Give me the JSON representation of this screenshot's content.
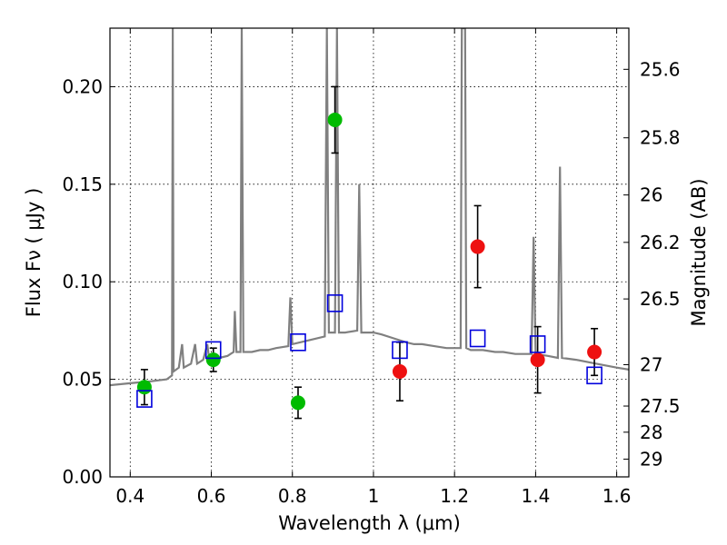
{
  "chart_data": {
    "type": "scatter",
    "xlabel": "Wavelength  λ (μm)",
    "ylabel": "Flux  Fν  ( μJy )",
    "y2label": "Magnitude (AB)",
    "xlim": [
      0.35,
      1.63
    ],
    "ylim": [
      0.0,
      0.23
    ],
    "grid": true,
    "x_ticks": [
      0.4,
      0.6,
      0.8,
      1.0,
      1.2,
      1.4,
      1.6
    ],
    "x_tick_labels": [
      "0.4",
      "0.6",
      "0.8",
      "1",
      "1.2",
      "1.4",
      "1.6"
    ],
    "y_ticks": [
      0.0,
      0.05,
      0.1,
      0.15,
      0.2
    ],
    "y_tick_labels": [
      "0.00",
      "0.05",
      "0.10",
      "0.15",
      "0.20"
    ],
    "mag_ticks": [
      {
        "label": "25.6",
        "flux": 0.2089
      },
      {
        "label": "25.8",
        "flux": 0.1738
      },
      {
        "label": "26",
        "flux": 0.1445
      },
      {
        "label": "26.2",
        "flux": 0.1202
      },
      {
        "label": "26.5",
        "flux": 0.0912
      },
      {
        "label": "27",
        "flux": 0.0575
      },
      {
        "label": "27.5",
        "flux": 0.0363
      },
      {
        "label": "28",
        "flux": 0.0229
      },
      {
        "label": "29",
        "flux": 0.0091
      }
    ],
    "spectrum": {
      "name": "model-spectrum",
      "color": "#808080",
      "points": [
        [
          0.35,
          0.047
        ],
        [
          0.4,
          0.048
        ],
        [
          0.45,
          0.049
        ],
        [
          0.49,
          0.05
        ],
        [
          0.503,
          0.052
        ],
        [
          0.505,
          0.23
        ],
        [
          0.507,
          0.054
        ],
        [
          0.52,
          0.056
        ],
        [
          0.528,
          0.068
        ],
        [
          0.532,
          0.056
        ],
        [
          0.55,
          0.058
        ],
        [
          0.56,
          0.068
        ],
        [
          0.565,
          0.058
        ],
        [
          0.58,
          0.06
        ],
        [
          0.59,
          0.068
        ],
        [
          0.595,
          0.06
        ],
        [
          0.62,
          0.061
        ],
        [
          0.64,
          0.062
        ],
        [
          0.655,
          0.064
        ],
        [
          0.658,
          0.085
        ],
        [
          0.662,
          0.064
        ],
        [
          0.672,
          0.064
        ],
        [
          0.675,
          0.23
        ],
        [
          0.679,
          0.064
        ],
        [
          0.7,
          0.064
        ],
        [
          0.72,
          0.065
        ],
        [
          0.74,
          0.065
        ],
        [
          0.76,
          0.066
        ],
        [
          0.79,
          0.067
        ],
        [
          0.795,
          0.092
        ],
        [
          0.8,
          0.068
        ],
        [
          0.84,
          0.07
        ],
        [
          0.88,
          0.072
        ],
        [
          0.885,
          0.23
        ],
        [
          0.89,
          0.074
        ],
        [
          0.905,
          0.074
        ],
        [
          0.91,
          0.23
        ],
        [
          0.915,
          0.074
        ],
        [
          0.93,
          0.074
        ],
        [
          0.96,
          0.075
        ],
        [
          0.965,
          0.15
        ],
        [
          0.97,
          0.074
        ],
        [
          1.0,
          0.074
        ],
        [
          1.02,
          0.073
        ],
        [
          1.05,
          0.071
        ],
        [
          1.08,
          0.069
        ],
        [
          1.1,
          0.068
        ],
        [
          1.12,
          0.068
        ],
        [
          1.15,
          0.067
        ],
        [
          1.18,
          0.066
        ],
        [
          1.2,
          0.066
        ],
        [
          1.215,
          0.066
        ],
        [
          1.218,
          0.23
        ],
        [
          1.226,
          0.23
        ],
        [
          1.229,
          0.066
        ],
        [
          1.24,
          0.065
        ],
        [
          1.27,
          0.065
        ],
        [
          1.3,
          0.064
        ],
        [
          1.32,
          0.064
        ],
        [
          1.35,
          0.063
        ],
        [
          1.39,
          0.063
        ],
        [
          1.395,
          0.123
        ],
        [
          1.4,
          0.063
        ],
        [
          1.43,
          0.062
        ],
        [
          1.455,
          0.061
        ],
        [
          1.46,
          0.159
        ],
        [
          1.465,
          0.061
        ],
        [
          1.5,
          0.06
        ],
        [
          1.55,
          0.058
        ],
        [
          1.6,
          0.056
        ],
        [
          1.63,
          0.055
        ]
      ]
    },
    "series": [
      {
        "name": "green-observed",
        "color": "#00bb00",
        "points": [
          {
            "x": 0.435,
            "y": 0.046,
            "err": 0.009
          },
          {
            "x": 0.605,
            "y": 0.06,
            "err": 0.006
          },
          {
            "x": 0.814,
            "y": 0.038,
            "err": 0.008
          },
          {
            "x": 0.905,
            "y": 0.183,
            "err": 0.017
          }
        ]
      },
      {
        "name": "red-observed",
        "color": "#ee1111",
        "points": [
          {
            "x": 1.065,
            "y": 0.054,
            "err": 0.015
          },
          {
            "x": 1.257,
            "y": 0.118,
            "err": 0.021
          },
          {
            "x": 1.405,
            "y": 0.06,
            "err": 0.017
          },
          {
            "x": 1.545,
            "y": 0.064,
            "err": 0.012
          }
        ]
      },
      {
        "name": "model-photometry",
        "color": "#0000dd",
        "points": [
          {
            "x": 0.435,
            "y": 0.04
          },
          {
            "x": 0.605,
            "y": 0.065
          },
          {
            "x": 0.814,
            "y": 0.069
          },
          {
            "x": 0.905,
            "y": 0.089
          },
          {
            "x": 1.065,
            "y": 0.065
          },
          {
            "x": 1.257,
            "y": 0.071
          },
          {
            "x": 1.405,
            "y": 0.068
          },
          {
            "x": 1.545,
            "y": 0.052
          }
        ]
      }
    ]
  }
}
